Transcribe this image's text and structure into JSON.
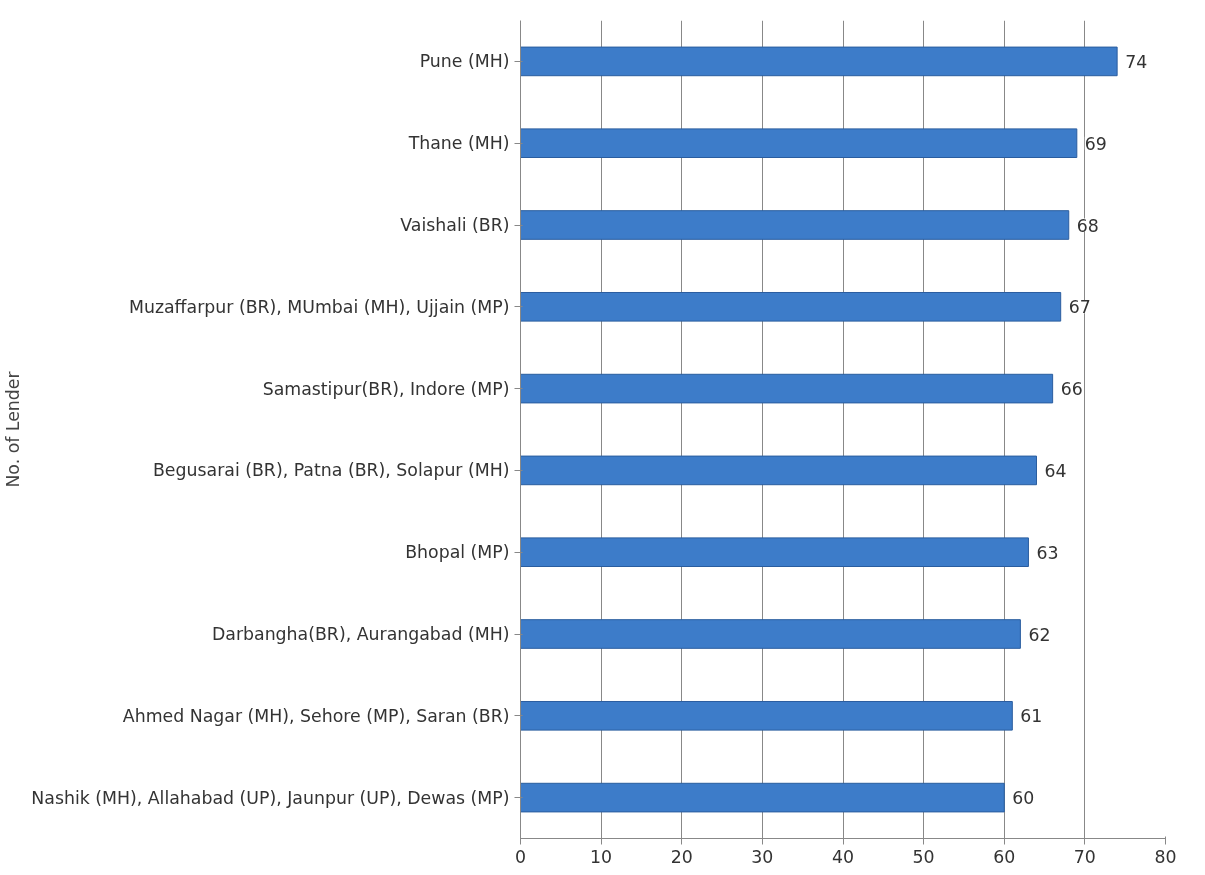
{
  "chart_data": {
    "type": "bar",
    "orientation": "horizontal",
    "ylabel": "No. of Lender",
    "categories": [
      "Pune (MH)",
      "Thane (MH)",
      "Vaishali (BR)",
      "Muzaffarpur (BR), MUmbai (MH), Ujjain (MP)",
      "Samastipur(BR), Indore (MP)",
      "Begusarai (BR), Patna (BR), Solapur (MH)",
      "Bhopal (MP)",
      "Darbangha(BR), Aurangabad (MH)",
      "Ahmed Nagar (MH), Sehore (MP), Saran (BR)",
      "Nashik (MH), Allahabad (UP), Jaunpur (UP), Dewas (MP)"
    ],
    "values": [
      74,
      69,
      68,
      67,
      66,
      64,
      63,
      62,
      61,
      60
    ],
    "color": "#3d7cc9",
    "xlim": [
      0,
      80
    ],
    "xticks": [
      0,
      10,
      20,
      30,
      40,
      50,
      60,
      70,
      80
    ],
    "grid": "x",
    "data_labels": true
  }
}
